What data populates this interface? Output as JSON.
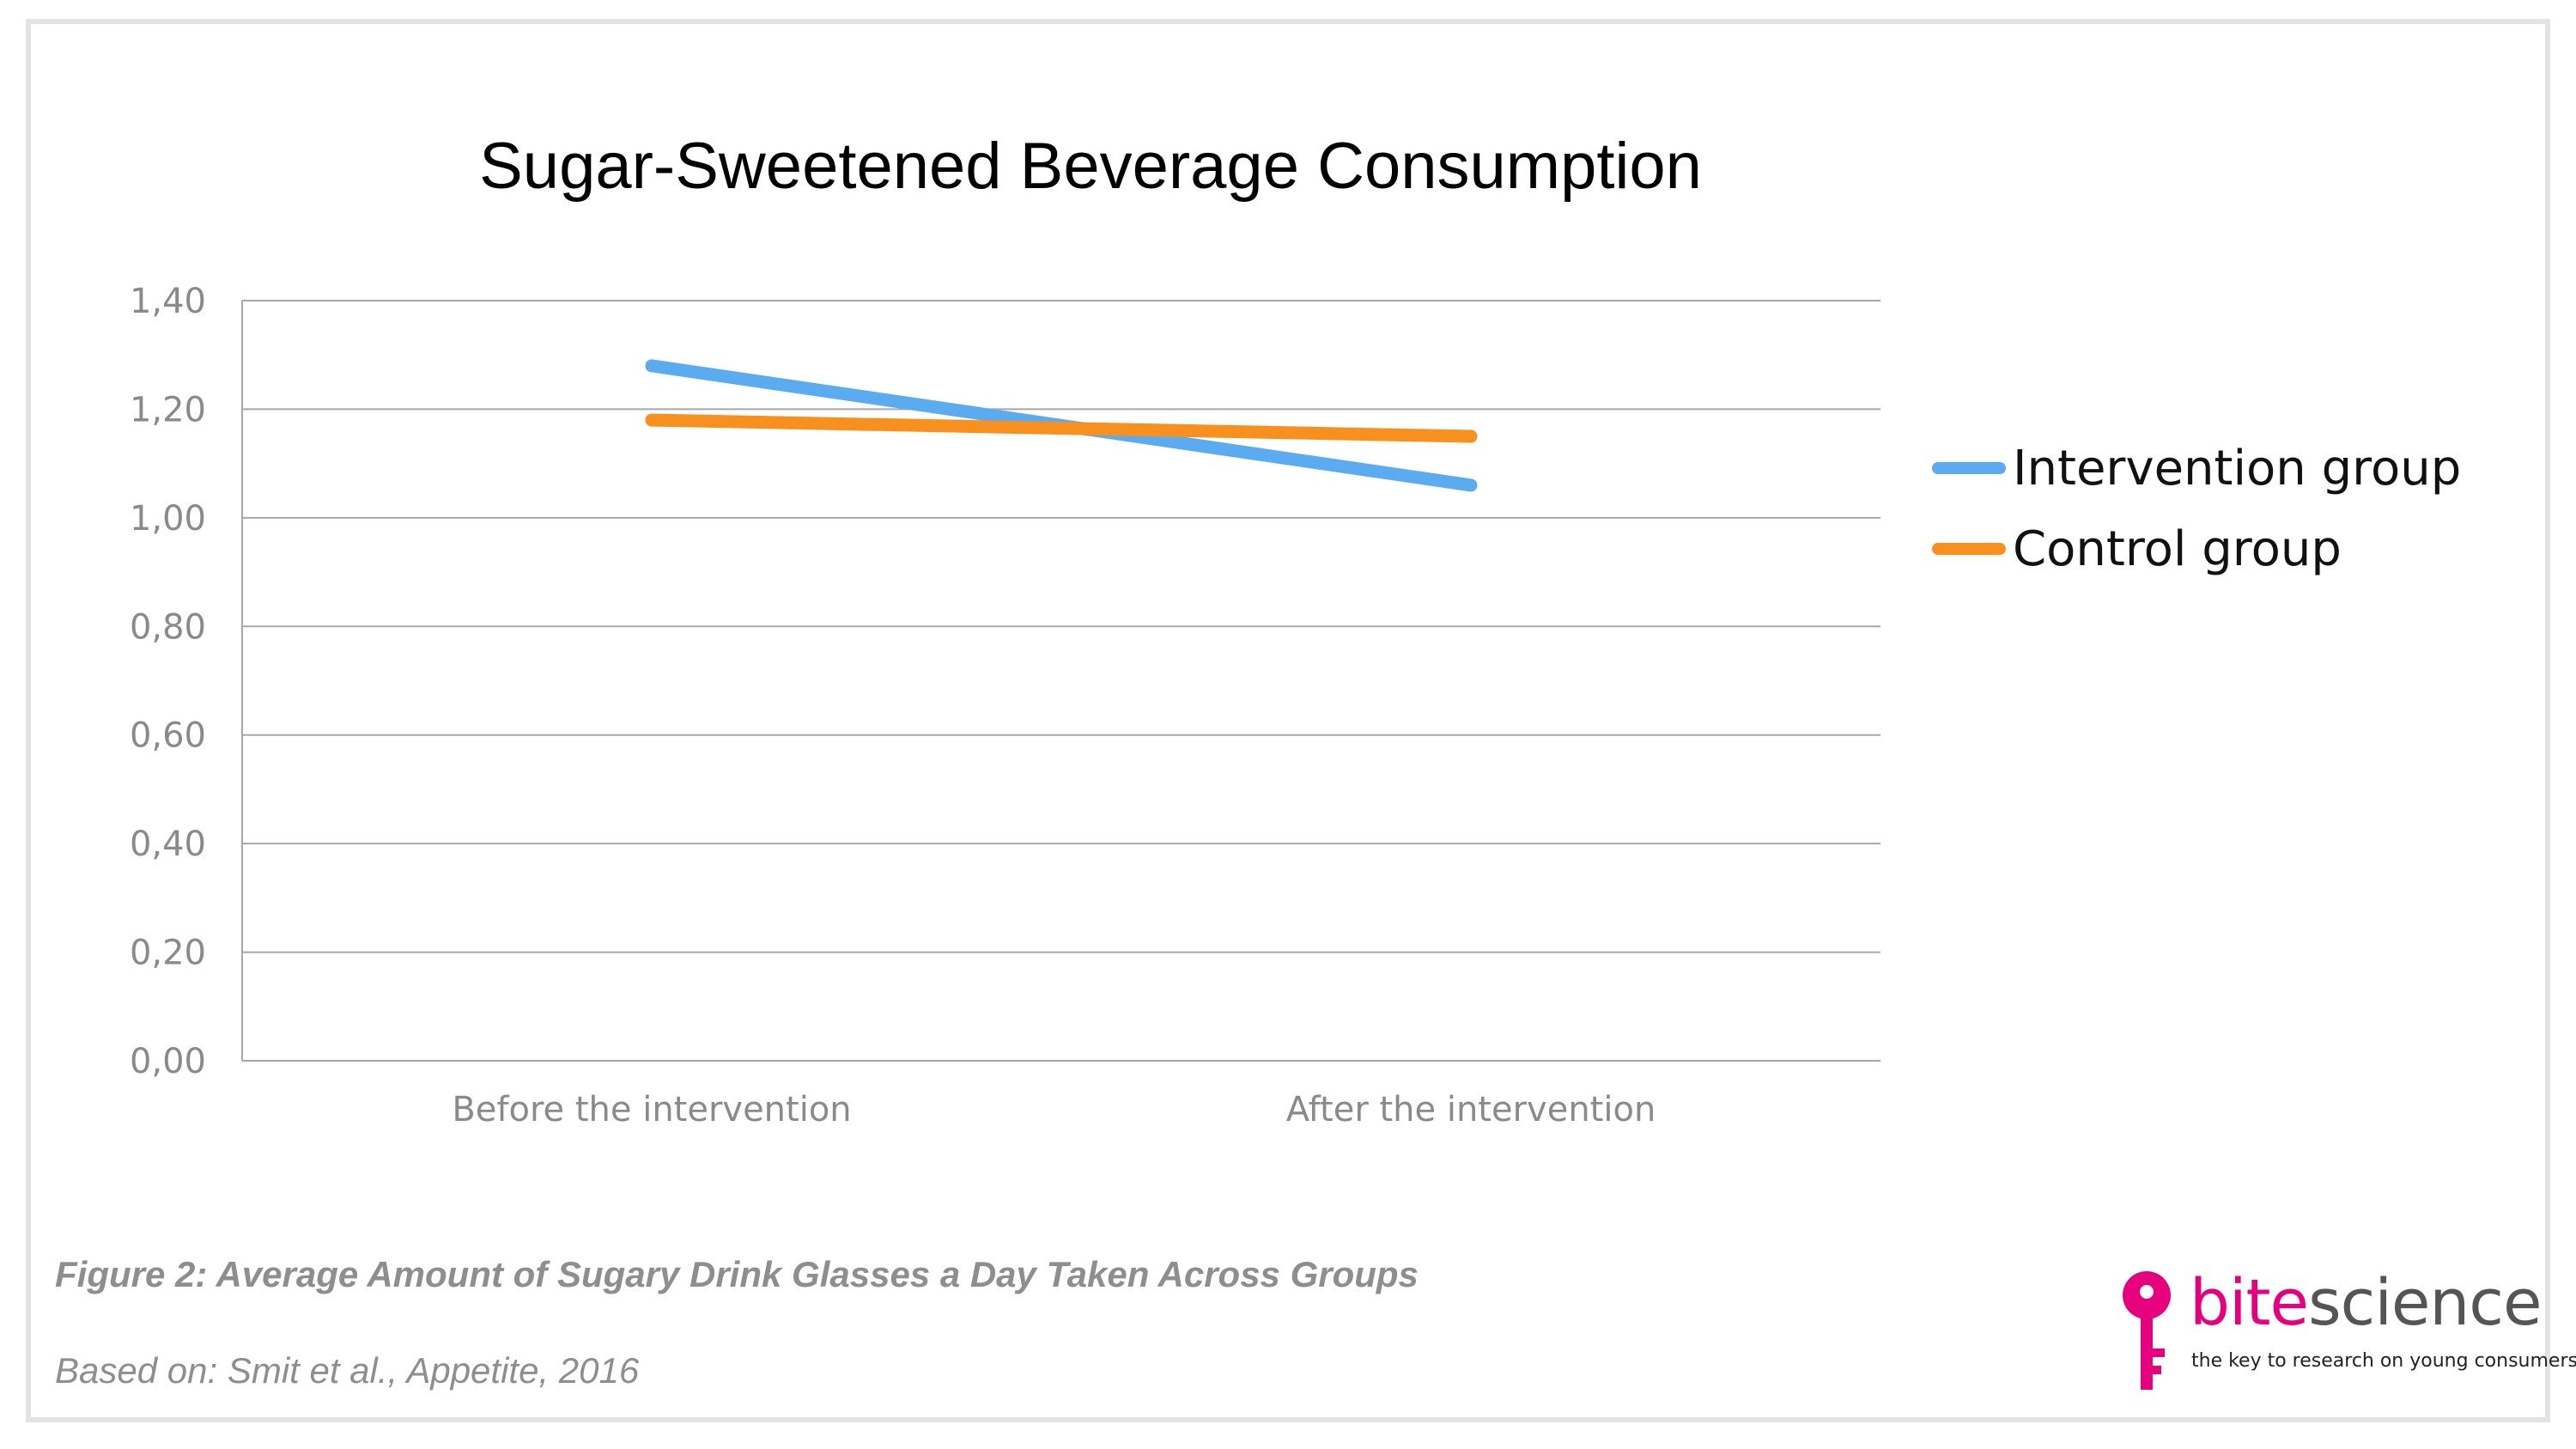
{
  "title": "Sugar-Sweetened Beverage Consumption",
  "caption": "Figure 2: Average Amount of  Sugary Drink Glasses a Day Taken Across Groups",
  "source": "Based on: Smit et al., Appetite, 2016",
  "logo": {
    "word_part1": "bite",
    "word_part2": "science",
    "tagline": "the key to research on young consumers",
    "icon": "key-icon",
    "accent_color": "#e6007e"
  },
  "chart_data": {
    "type": "line",
    "title": "Sugar-Sweetened Beverage Consumption",
    "categories": [
      "Before the intervention",
      "After the intervention"
    ],
    "series": [
      {
        "name": "Intervention group",
        "values": [
          1.28,
          1.06
        ],
        "color": "#5aabf0"
      },
      {
        "name": "Control group",
        "values": [
          1.18,
          1.15
        ],
        "color": "#f7901e"
      }
    ],
    "ylim": [
      0,
      1.4
    ],
    "yticks": [
      "0,00",
      "0,20",
      "0,40",
      "0,60",
      "0,80",
      "1,00",
      "1,20",
      "1,40"
    ],
    "grid": true,
    "legend": "right"
  }
}
